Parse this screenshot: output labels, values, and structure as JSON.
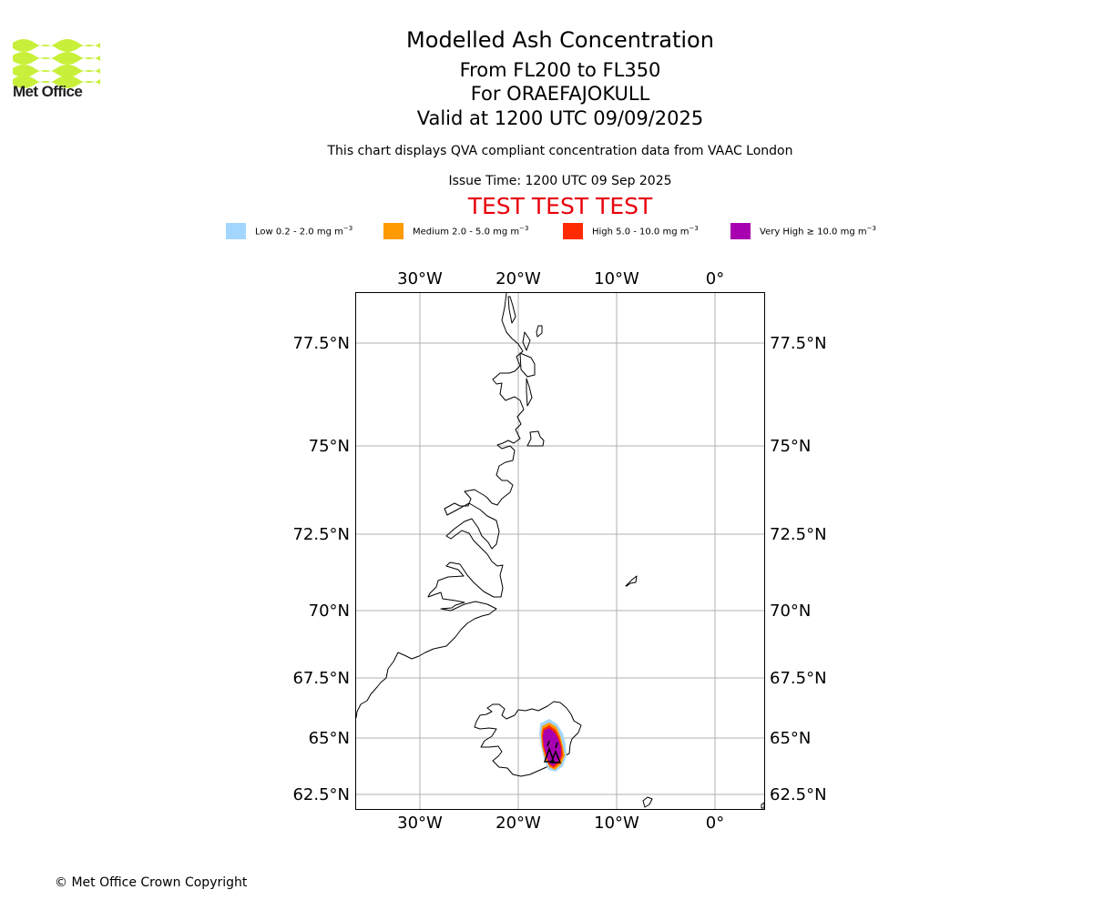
{
  "logo": {
    "text": "Met Office",
    "color": "#c8f03a"
  },
  "header": {
    "title": "Modelled Ash Concentration",
    "level_range": "From FL200 to FL350",
    "volcano": "For ORAEFAJOKULL",
    "valid_time": "Valid at 1200 UTC 09/09/2025",
    "description": "This chart displays QVA compliant concentration data from VAAC London",
    "issue_time": "Issue Time: 1200 UTC 09 Sep 2025",
    "test_banner": "TEST TEST TEST"
  },
  "legend": [
    {
      "label": "Low 0.2 - 2.0 mg m",
      "color": "#a3d6ff"
    },
    {
      "label": "Medium 2.0 - 5.0 mg m",
      "color": "#ff9a00"
    },
    {
      "label": "High 5.0 - 10.0 mg m",
      "color": "#ff2a00"
    },
    {
      "label": "Very High ≥ 10.0 mg m",
      "color": "#a800b0"
    }
  ],
  "legend_unit_exponent": "−3",
  "map": {
    "lon_labels": [
      "30°W",
      "20°W",
      "10°W",
      "0°"
    ],
    "lat_labels": [
      "77.5°N",
      "75°N",
      "72.5°N",
      "70°N",
      "67.5°N",
      "65°N",
      "62.5°N"
    ]
  },
  "copyright": "© Met Office Crown Copyright"
}
